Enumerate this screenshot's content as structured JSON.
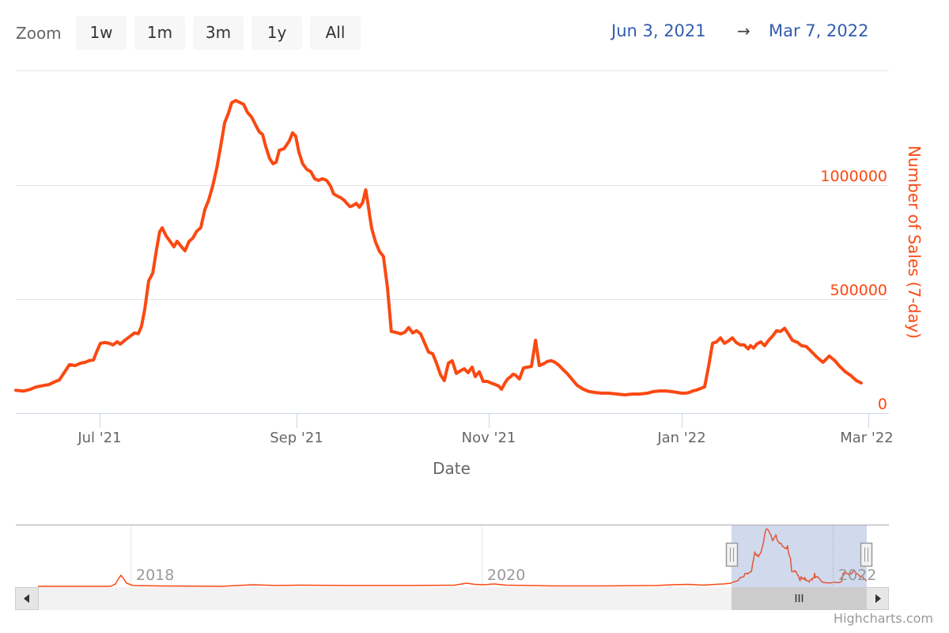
{
  "range_selector": {
    "zoom_label": "Zoom",
    "buttons": [
      {
        "label": "1w"
      },
      {
        "label": "1m"
      },
      {
        "label": "3m"
      },
      {
        "label": "1y"
      },
      {
        "label": "All"
      }
    ],
    "from_date": "Jun 3, 2021",
    "arrow": "→",
    "to_date": "Mar 7, 2022"
  },
  "colors": {
    "series": "#fa4912",
    "date_text": "#335cad",
    "grid": "#e6e6e6",
    "axis": "#ccd6eb",
    "navigator_mask": "rgba(102,133,194,0.3)"
  },
  "navigator": {
    "labels": [
      "2018",
      "2020",
      "2022"
    ],
    "left_arrow": "◀",
    "right_arrow": "▶",
    "thumb_grip": "III",
    "handle_grip": "II"
  },
  "credits": "Highcharts.com",
  "chart_data": {
    "type": "line",
    "title": "",
    "xlabel": "Date",
    "ylabel": "Number of Sales (7-day)",
    "x_tick_labels": [
      "Jul '21",
      "Sep '21",
      "Nov '21",
      "Jan '22",
      "Mar '22"
    ],
    "y_tick_labels": [
      "0",
      "500000",
      "1000000"
    ],
    "ylim": [
      0,
      1500000
    ],
    "xlim": [
      "2021-06-03",
      "2022-03-07"
    ],
    "grid": true,
    "legend": "none",
    "series": [
      {
        "name": "Number of Sales (7-day)",
        "x_day_offset": [
          0,
          2.5,
          4.5,
          6.3,
          8.8,
          10.5,
          12,
          13.8,
          15.5,
          17,
          18.8,
          20.6,
          22,
          23.1,
          24.6,
          25.6,
          26.8,
          28.3,
          29.6,
          30.8,
          32.1,
          33.1,
          34.6,
          36.3,
          37.6,
          38.8,
          39.8,
          40.9,
          42.1,
          43.4,
          44.6,
          45.6,
          46.4,
          47.6,
          48.9,
          50.1,
          51.1,
          52.1,
          53.6,
          54.9,
          56.1,
          57.4,
          58.6,
          59.9,
          61.1,
          62.4,
          63.7,
          64.9,
          66.2,
          67.4,
          68.4,
          69.7,
          71.2,
          72.2,
          73.4,
          74.7,
          76,
          77.2,
          78.2,
          79.2,
          80.4,
          81.5,
          82.5,
          83.5,
          85,
          86.7,
          87.7,
          88.7,
          89.7,
          90.9,
          92.2,
          93.5,
          94.7,
          95.9,
          97.2,
          98.5,
          99.7,
          100.7,
          101.5,
          103,
          104,
          104.9,
          105.9,
          106.7,
          107.9,
          108.9,
          109.9,
          110.9,
          111.7,
          112.2,
          112.8,
          114,
          115.3,
          116.5,
          117.8,
          119,
          120.3,
          122,
          123.3,
          124.5,
          125.8,
          127,
          128.3,
          129.6,
          130.8,
          132.1,
          133.3,
          134.6,
          135.8,
          137.1,
          138.3,
          139.6,
          140.8,
          142.1,
          143.3,
          144.6,
          145.6,
          146.9,
          148.1,
          149.4,
          150.6,
          151.9,
          153.1,
          153.9,
          155,
          155.9,
          156.9,
          157.6,
          158.3,
          159.6,
          160.9,
          162.2,
          163.4,
          164.7,
          165.9,
          167.2,
          168.4,
          169.7,
          170.9,
          172.2,
          173.4,
          174.7,
          176.2,
          177.9,
          179.9,
          181.7,
          183.7,
          185.7,
          187.9,
          190.5,
          193,
          195.5,
          197.7,
          200.2,
          202,
          204,
          206,
          207.8,
          209.8,
          211,
          212.3,
          213.3,
          214.5,
          215.8,
          217.1,
          218.3,
          219.6,
          220.8,
          222.1,
          223.3,
          224.6,
          225.8,
          227.1,
          228.3,
          229.6,
          230.8,
          232.1,
          232.8,
          233.8,
          234.8,
          236.1,
          237.3,
          238.6,
          239.8,
          241.1,
          242.3,
          243.6,
          244.8,
          246.1,
          247.8,
          249,
          250.5,
          252.3,
          254,
          255.8,
          257.8,
          259.6,
          261.1,
          262.9,
          264.7,
          266.4,
          267.9
        ],
        "values": [
          100000,
          96500,
          103500,
          114000,
          121000,
          124500,
          135000,
          145500,
          180500,
          212000,
          208500,
          219000,
          222500,
          229500,
          233000,
          267500,
          306000,
          309500,
          306000,
          299000,
          313000,
          302500,
          320000,
          337500,
          351500,
          348000,
          379000,
          458500,
          580000,
          615000,
          719000,
          795500,
          813000,
          778000,
          753500,
          729500,
          753500,
          736000,
          712000,
          753500,
          767500,
          799000,
          813000,
          892500,
          934000,
          997000,
          1076500,
          1170000,
          1274500,
          1316000,
          1361500,
          1371500,
          1361500,
          1354500,
          1319500,
          1299000,
          1264000,
          1233000,
          1222500,
          1170000,
          1118000,
          1094000,
          1101000,
          1153000,
          1160000,
          1194500,
          1229500,
          1215500,
          1146000,
          1094000,
          1069500,
          1059000,
          1028000,
          1021000,
          1028000,
          1021000,
          997000,
          962000,
          955000,
          944500,
          934000,
          920000,
          906000,
          909500,
          920000,
          903000,
          923500,
          979500,
          909500,
          861000,
          809000,
          750000,
          708500,
          687500,
          549000,
          358000,
          354500,
          347500,
          354500,
          375500,
          351500,
          361500,
          347500,
          306000,
          267500,
          260500,
          219000,
          167000,
          142500,
          219000,
          229500,
          174000,
          184500,
          194500,
          177000,
          201500,
          160000,
          181000,
          139000,
          139000,
          132000,
          125000,
          118000,
          104000,
          132000,
          149500,
          160000,
          170500,
          167000,
          149500,
          198000,
          201500,
          205000,
          319500,
          208500,
          215500,
          226000,
          229500,
          222500,
          208500,
          191000,
          174000,
          149500,
          121500,
          104000,
          94000,
          90000,
          87000,
          87000,
          83500,
          80000,
          83500,
          83500,
          87000,
          94000,
          97000,
          97000,
          94000,
          90000,
          87000,
          87000,
          90000,
          97000,
          101000,
          108000,
          115000,
          208500,
          306000,
          312500,
          330000,
          306000,
          316000,
          330000,
          309500,
          299000,
          299000,
          281500,
          295500,
          285000,
          302500,
          312500,
          295500,
          319500,
          337500,
          361500,
          358000,
          372000,
          347500,
          319500,
          309500,
          295500,
          292000,
          267500,
          243500,
          222500,
          250000,
          229500,
          205000,
          181000,
          163500,
          142500,
          132000,
          125000,
          118000,
          121500,
          118000,
          108000,
          101000,
          94000,
          97500
        ]
      }
    ],
    "annotations": [
      {
        "type": "range_display",
        "from": "Jun 3, 2021",
        "to": "Mar 7, 2022"
      }
    ],
    "navigator": {
      "visible_range_note": "selected window covers Jun 2021 – Mar 2022",
      "x_tick_labels": [
        "2018",
        "2020",
        "2022"
      ]
    }
  }
}
